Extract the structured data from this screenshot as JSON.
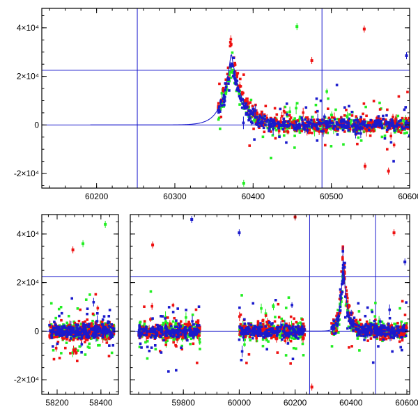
{
  "colors": {
    "red": "#ee1111",
    "green": "#22ee22",
    "blue": "#1a1acc",
    "axis": "#000000"
  },
  "chart_data": [
    {
      "type": "scatter",
      "title": "",
      "xlabel": "",
      "ylabel": "",
      "xlim": [
        60130,
        60600
      ],
      "ylim": [
        -26000,
        48000
      ],
      "xticks": [
        60200,
        60300,
        60400,
        60500,
        60600
      ],
      "xtick_labels": [
        "60200",
        "60300",
        "60400",
        "60500",
        "60600"
      ],
      "yticks": [
        -20000,
        0,
        20000,
        40000
      ],
      "ytick_labels": [
        "-2×10⁴",
        "0",
        "2×10⁴",
        "4×10⁴"
      ],
      "reference_lines": {
        "vertical": [
          60252,
          60488
        ],
        "horizontal": [
          0,
          22500
        ]
      },
      "model_curve": {
        "t0": 60372,
        "peak": 30000,
        "rise_tau": 11,
        "decay_tau": 14
      },
      "series": [
        {
          "color": "red",
          "peak": 35000
        },
        {
          "color": "green",
          "peak": 25000
        },
        {
          "color": "blue",
          "peak": 26000
        }
      ],
      "observing_seasons": [
        [
          60355,
          60600
        ]
      ],
      "highlight_points": [
        {
          "series": "red",
          "x": 60475,
          "y": 26500
        },
        {
          "series": "red",
          "x": 60542,
          "y": 39500
        },
        {
          "series": "green",
          "x": 60456,
          "y": 40500
        },
        {
          "series": "blue",
          "x": 60596,
          "y": 28500
        },
        {
          "series": "red",
          "x": 60543,
          "y": -17000
        },
        {
          "series": "red",
          "x": 60573,
          "y": -19000
        },
        {
          "series": "green",
          "x": 60388,
          "y": -24000
        }
      ]
    },
    {
      "type": "scatter",
      "title": "",
      "xlabel": "",
      "ylabel": "",
      "xlim": [
        58130,
        60610
      ],
      "ylim": [
        -26000,
        48000
      ],
      "broken_axis": [
        {
          "xlim": [
            58130,
            58480
          ]
        },
        {
          "xlim": [
            59610,
            60610
          ]
        }
      ],
      "xticks": [
        58200,
        58400,
        59800,
        60000,
        60200,
        60400,
        60600
      ],
      "xtick_labels": [
        "58200",
        "58400",
        "59800",
        "60000",
        "60200",
        "60400",
        "60600"
      ],
      "yticks": [
        -20000,
        0,
        20000,
        40000
      ],
      "ytick_labels": [
        "-2×10⁴",
        "0",
        "2×10⁴",
        "4×10⁴"
      ],
      "reference_lines": {
        "vertical": [
          60252,
          60488
        ],
        "horizontal": [
          0,
          22500
        ]
      },
      "model_curve": {
        "t0": 60372,
        "peak": 30000,
        "rise_tau": 11,
        "decay_tau": 14
      },
      "series": [
        {
          "color": "red",
          "peak": 35000
        },
        {
          "color": "green",
          "peak": 25000
        },
        {
          "color": "blue",
          "peak": 26000
        }
      ],
      "observing_seasons": [
        [
          58165,
          58460
        ],
        [
          59640,
          59860
        ],
        [
          60000,
          60235
        ],
        [
          60330,
          60600
        ]
      ],
      "highlight_points": [
        {
          "series": "green",
          "x": 58420,
          "y": 44000
        },
        {
          "series": "red",
          "x": 58272,
          "y": 33500
        },
        {
          "series": "green",
          "x": 58318,
          "y": 36000
        },
        {
          "series": "blue",
          "x": 59830,
          "y": 46000
        },
        {
          "series": "red",
          "x": 59690,
          "y": 35500
        },
        {
          "series": "red",
          "x": 60200,
          "y": 47000
        },
        {
          "series": "blue",
          "x": 60000,
          "y": 40500
        },
        {
          "series": "red",
          "x": 60554,
          "y": 40500
        },
        {
          "series": "blue",
          "x": 60593,
          "y": 28500
        },
        {
          "series": "red",
          "x": 60260,
          "y": -23000
        }
      ]
    }
  ]
}
